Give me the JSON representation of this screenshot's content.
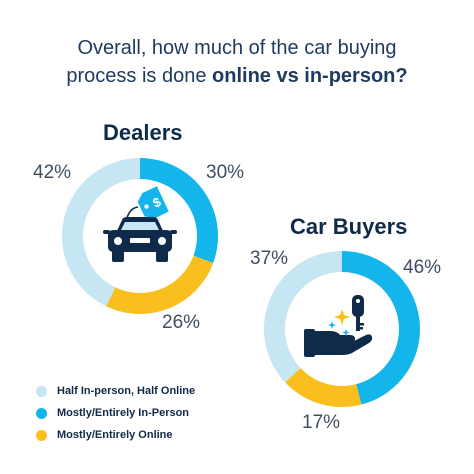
{
  "title": {
    "line1": "Overall, how much of the car buying",
    "line2_regular": "process is done ",
    "line2_bold": "online vs in-person?"
  },
  "colors": {
    "half": "#c5e6f2",
    "in_person": "#13b5ea",
    "online": "#f9bf1e",
    "icon_dark": "#102a49"
  },
  "legend": [
    {
      "label": "Half In-person, Half Online",
      "color": "#c5e6f2"
    },
    {
      "label": "Mostly/Entirely In-Person",
      "color": "#13b5ea"
    },
    {
      "label": "Mostly/Entirely Online",
      "color": "#f9bf1e"
    }
  ],
  "chart_data": [
    {
      "type": "pie",
      "title": "Dealers",
      "categories": [
        "Half In-person, Half Online",
        "Mostly/Entirely In-Person",
        "Mostly/Entirely Online"
      ],
      "values": [
        42,
        30,
        26
      ],
      "labels": [
        "42%",
        "30%",
        "26%"
      ],
      "icon": "car-with-price-tag-icon"
    },
    {
      "type": "pie",
      "title": "Car Buyers",
      "categories": [
        "Half In-person, Half Online",
        "Mostly/Entirely In-Person",
        "Mostly/Entirely Online"
      ],
      "values": [
        37,
        46,
        17
      ],
      "labels": [
        "37%",
        "46%",
        "17%"
      ],
      "icon": "hand-with-key-icon"
    }
  ]
}
